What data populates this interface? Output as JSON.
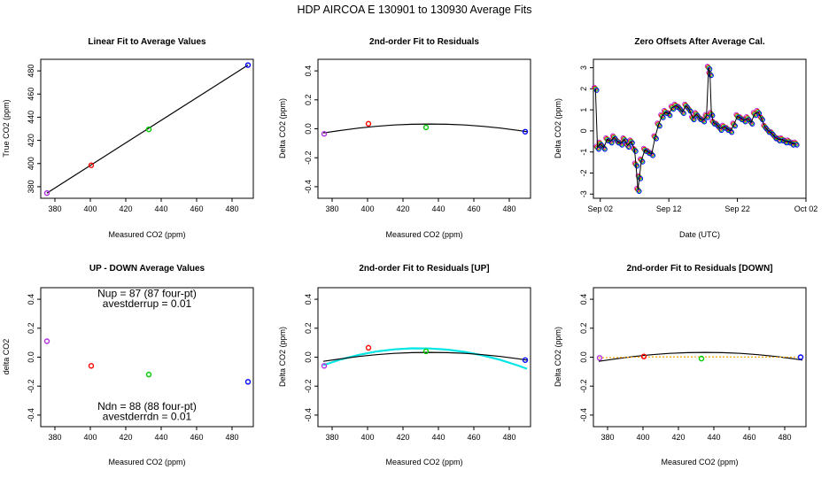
{
  "figure_title": "HDP    AIRCOA E    130901 to 130930    Average Fits",
  "chart_data": [
    {
      "id": "p1",
      "type": "scatter",
      "title": "Linear Fit to Average Values",
      "xlabel": "Measured CO2 (ppm)",
      "ylabel": "True CO2 (ppm)",
      "xlim": [
        372,
        492
      ],
      "ylim": [
        370,
        490
      ],
      "xticks": [
        {
          "v": 380,
          "label": "380"
        },
        {
          "v": 400,
          "label": "400"
        },
        {
          "v": 420,
          "label": "420"
        },
        {
          "v": 440,
          "label": "440"
        },
        {
          "v": 460,
          "label": "460"
        },
        {
          "v": 480,
          "label": "480"
        }
      ],
      "yticks": [
        {
          "v": 380,
          "label": "380"
        },
        {
          "v": 400,
          "label": "400"
        },
        {
          "v": 420,
          "label": "420"
        },
        {
          "v": 440,
          "label": "440"
        },
        {
          "v": 460,
          "label": "460"
        },
        {
          "v": 480,
          "label": "480"
        }
      ],
      "points": [
        {
          "x": 375.5,
          "y": 374.5,
          "color": "#b030e0"
        },
        {
          "x": 400.5,
          "y": 398.5,
          "color": "#ff0000"
        },
        {
          "x": 433.0,
          "y": 429.5,
          "color": "#00cc00"
        },
        {
          "x": 489.0,
          "y": 485.0,
          "color": "#0000ff"
        }
      ],
      "lines": [
        {
          "name": "linear fit",
          "color": "#000000",
          "x": [
            375.5,
            489.0
          ],
          "y": [
            374.5,
            485.0
          ]
        }
      ]
    },
    {
      "id": "p2",
      "type": "scatter",
      "title": "2nd-order Fit to Residuals",
      "xlabel": "Measured CO2 (ppm)",
      "ylabel": "Delta CO2 (ppm)",
      "xlim": [
        372,
        492
      ],
      "ylim": [
        -0.48,
        0.48
      ],
      "xticks": [
        {
          "v": 380,
          "label": "380"
        },
        {
          "v": 400,
          "label": "400"
        },
        {
          "v": 420,
          "label": "420"
        },
        {
          "v": 440,
          "label": "440"
        },
        {
          "v": 460,
          "label": "460"
        },
        {
          "v": 480,
          "label": "480"
        }
      ],
      "yticks": [
        {
          "v": -0.4,
          "label": "-0.4"
        },
        {
          "v": -0.2,
          "label": "-0.2"
        },
        {
          "v": 0.0,
          "label": "0.0"
        },
        {
          "v": 0.2,
          "label": "0.2"
        },
        {
          "v": 0.4,
          "label": "0.4"
        }
      ],
      "points": [
        {
          "x": 375.5,
          "y": -0.035,
          "color": "#b030e0"
        },
        {
          "x": 400.5,
          "y": 0.035,
          "color": "#ff0000"
        },
        {
          "x": 433.0,
          "y": 0.01,
          "color": "#00cc00"
        },
        {
          "x": 489.0,
          "y": -0.02,
          "color": "#0000ff"
        }
      ],
      "lines": [
        {
          "name": "2nd-order fit",
          "color": "#000000",
          "x": [
            375,
            385,
            395,
            405,
            415,
            425,
            435,
            445,
            455,
            465,
            475,
            485,
            490
          ],
          "y": [
            -0.029,
            -0.011,
            0.005,
            0.017,
            0.026,
            0.031,
            0.033,
            0.031,
            0.026,
            0.017,
            0.005,
            -0.011,
            -0.02
          ]
        }
      ]
    },
    {
      "id": "p3",
      "type": "scatter",
      "title": "Zero Offsets After Average Cal.",
      "xlabel": "Date (UTC)",
      "ylabel": "Delta CO2 (ppm)",
      "xlim": [
        0,
        31
      ],
      "ylim": [
        -3.2,
        3.4
      ],
      "xticks": [
        {
          "v": 1,
          "label": "Sep 02"
        },
        {
          "v": 11,
          "label": "Sep 12"
        },
        {
          "v": 21,
          "label": "Sep 22"
        },
        {
          "v": 31,
          "label": "Oct 02"
        }
      ],
      "yticks": [
        {
          "v": -3,
          "label": "-3"
        },
        {
          "v": -2,
          "label": "-2"
        },
        {
          "v": -1,
          "label": "-1"
        },
        {
          "v": 0,
          "label": "0"
        },
        {
          "v": 1,
          "label": "1"
        },
        {
          "v": 2,
          "label": "2"
        },
        {
          "v": 3,
          "label": "3"
        }
      ],
      "points": [],
      "series": [
        {
          "name": "zero offset",
          "color": "#000000",
          "marker_colors": [
            "#b030e0",
            "#ff0000",
            "#00cc00",
            "#0000ff"
          ],
          "x": [
            0.3,
            0.6,
            1.0,
            1.5,
            2.0,
            2.5,
            3.0,
            3.5,
            4.0,
            4.5,
            5.0,
            5.5,
            6.0,
            6.2,
            6.5,
            6.7,
            7.0,
            7.5,
            8.0,
            8.5,
            9.0,
            9.5,
            10.0,
            10.5,
            11.0,
            11.5,
            12.0,
            12.5,
            13.0,
            13.5,
            14.0,
            14.5,
            15.0,
            15.5,
            16.0,
            16.5,
            16.8,
            17.0,
            17.2,
            17.5,
            18.0,
            18.5,
            19.0,
            19.5,
            20.0,
            20.5,
            21.0,
            21.5,
            22.0,
            22.5,
            23.0,
            23.5,
            24.0,
            24.5,
            25.0,
            25.5,
            26.0,
            26.5,
            27.0,
            27.5,
            28.0,
            28.5,
            29.0,
            29.5
          ],
          "y": [
            2.0,
            -0.8,
            -0.6,
            -0.8,
            -0.4,
            -0.5,
            -0.3,
            -0.5,
            -0.6,
            -0.4,
            -0.7,
            -0.5,
            -0.9,
            -1.6,
            -2.8,
            -2.2,
            -1.4,
            -0.9,
            -1.0,
            -1.1,
            -0.3,
            0.3,
            0.7,
            0.9,
            0.8,
            1.1,
            1.2,
            1.1,
            0.9,
            1.2,
            1.0,
            0.6,
            0.8,
            0.6,
            0.5,
            0.7,
            3.0,
            2.7,
            0.8,
            0.4,
            0.3,
            0.1,
            0.2,
            0.1,
            0.0,
            0.3,
            0.7,
            0.6,
            0.5,
            0.6,
            0.4,
            0.8,
            0.9,
            0.6,
            0.2,
            0.0,
            -0.1,
            -0.3,
            -0.4,
            -0.4,
            -0.5,
            -0.5,
            -0.6,
            -0.6
          ]
        }
      ]
    },
    {
      "id": "p4",
      "type": "scatter",
      "title": "UP - DOWN Average Values",
      "xlabel": "Measured CO2 (ppm)",
      "ylabel": "delta CO2",
      "xlim": [
        372,
        492
      ],
      "ylim": [
        -0.48,
        0.48
      ],
      "xticks": [
        {
          "v": 380,
          "label": "380"
        },
        {
          "v": 400,
          "label": "400"
        },
        {
          "v": 420,
          "label": "420"
        },
        {
          "v": 440,
          "label": "440"
        },
        {
          "v": 460,
          "label": "460"
        },
        {
          "v": 480,
          "label": "480"
        }
      ],
      "yticks": [
        {
          "v": -0.4,
          "label": "-0.4"
        },
        {
          "v": -0.2,
          "label": "-0.2"
        },
        {
          "v": 0.0,
          "label": "0.0"
        },
        {
          "v": 0.2,
          "label": "0.2"
        },
        {
          "v": 0.4,
          "label": "0.4"
        }
      ],
      "points": [
        {
          "x": 375.5,
          "y": 0.11,
          "color": "#b030e0"
        },
        {
          "x": 400.5,
          "y": -0.06,
          "color": "#ff0000"
        },
        {
          "x": 433.0,
          "y": -0.12,
          "color": "#00cc00"
        },
        {
          "x": 489.0,
          "y": -0.17,
          "color": "#0000ff"
        }
      ],
      "lines": [],
      "annotations": [
        {
          "text": "Nup = 87 (87 four-pt)",
          "x": 432,
          "y": 0.415
        },
        {
          "text": "avestderrup =  0.01",
          "x": 432,
          "y": 0.345
        },
        {
          "text": "Ndn = 88 (88 four-pt)",
          "x": 432,
          "y": -0.365
        },
        {
          "text": "avestderrdn =  0.01",
          "x": 432,
          "y": -0.435
        }
      ]
    },
    {
      "id": "p5",
      "type": "scatter",
      "title": "2nd-order Fit to Residuals [UP]",
      "xlabel": "Measured CO2 (ppm)",
      "ylabel": "Delta CO2 (ppm)",
      "xlim": [
        372,
        492
      ],
      "ylim": [
        -0.48,
        0.48
      ],
      "xticks": [
        {
          "v": 380,
          "label": "380"
        },
        {
          "v": 400,
          "label": "400"
        },
        {
          "v": 420,
          "label": "420"
        },
        {
          "v": 440,
          "label": "440"
        },
        {
          "v": 460,
          "label": "460"
        },
        {
          "v": 480,
          "label": "480"
        }
      ],
      "yticks": [
        {
          "v": -0.4,
          "label": "-0.4"
        },
        {
          "v": -0.2,
          "label": "-0.2"
        },
        {
          "v": 0.0,
          "label": "0.0"
        },
        {
          "v": 0.2,
          "label": "0.2"
        },
        {
          "v": 0.4,
          "label": "0.4"
        }
      ],
      "points": [
        {
          "x": 375.5,
          "y": -0.06,
          "color": "#b030e0"
        },
        {
          "x": 400.5,
          "y": 0.065,
          "color": "#ff0000"
        },
        {
          "x": 433.0,
          "y": 0.04,
          "color": "#00cc00"
        },
        {
          "x": 489.0,
          "y": -0.02,
          "color": "#0000ff"
        }
      ],
      "lines": [
        {
          "name": "UP fit",
          "color": "#00e5e5",
          "width": 2.2,
          "x": [
            375,
            385,
            395,
            405,
            415,
            425,
            435,
            445,
            455,
            465,
            475,
            485,
            490
          ],
          "y": [
            -0.055,
            -0.015,
            0.016,
            0.039,
            0.054,
            0.061,
            0.06,
            0.052,
            0.036,
            0.012,
            -0.019,
            -0.058,
            -0.08
          ]
        },
        {
          "name": "average fit",
          "color": "#000000",
          "width": 1.2,
          "x": [
            375,
            385,
            395,
            405,
            415,
            425,
            435,
            445,
            455,
            465,
            475,
            485,
            490
          ],
          "y": [
            -0.029,
            -0.011,
            0.005,
            0.017,
            0.026,
            0.031,
            0.033,
            0.031,
            0.026,
            0.017,
            0.005,
            -0.011,
            -0.02
          ]
        }
      ]
    },
    {
      "id": "p6",
      "type": "scatter",
      "title": "2nd-order Fit to Residuals [DOWN]",
      "xlabel": "Measured CO2 (ppm)",
      "ylabel": "Delta CO2 (ppm)",
      "xlim": [
        372,
        492
      ],
      "ylim": [
        -0.48,
        0.48
      ],
      "xticks": [
        {
          "v": 380,
          "label": "380"
        },
        {
          "v": 400,
          "label": "400"
        },
        {
          "v": 420,
          "label": "420"
        },
        {
          "v": 440,
          "label": "440"
        },
        {
          "v": 460,
          "label": "460"
        },
        {
          "v": 480,
          "label": "480"
        }
      ],
      "yticks": [
        {
          "v": -0.4,
          "label": "-0.4"
        },
        {
          "v": -0.2,
          "label": "-0.2"
        },
        {
          "v": 0.0,
          "label": "0.0"
        },
        {
          "v": 0.2,
          "label": "0.2"
        },
        {
          "v": 0.4,
          "label": "0.4"
        }
      ],
      "points": [
        {
          "x": 375.5,
          "y": -0.005,
          "color": "#b030e0"
        },
        {
          "x": 400.5,
          "y": 0.005,
          "color": "#ff0000"
        },
        {
          "x": 433.0,
          "y": -0.01,
          "color": "#00cc00"
        },
        {
          "x": 489.0,
          "y": 0.0,
          "color": "#0000ff"
        }
      ],
      "lines": [
        {
          "name": "average fit",
          "color": "#000000",
          "width": 1.2,
          "x": [
            375,
            385,
            395,
            405,
            415,
            425,
            435,
            445,
            455,
            465,
            475,
            485,
            490
          ],
          "y": [
            -0.029,
            -0.011,
            0.005,
            0.017,
            0.026,
            0.031,
            0.033,
            0.031,
            0.026,
            0.017,
            0.005,
            -0.011,
            -0.02
          ]
        },
        {
          "name": "DOWN fit",
          "color": "#ffa500",
          "width": 1.2,
          "dash": "2,2",
          "x": [
            375,
            400,
            433,
            489
          ],
          "y": [
            -0.004,
            0.001,
            0.002,
            0.0
          ]
        }
      ]
    }
  ]
}
